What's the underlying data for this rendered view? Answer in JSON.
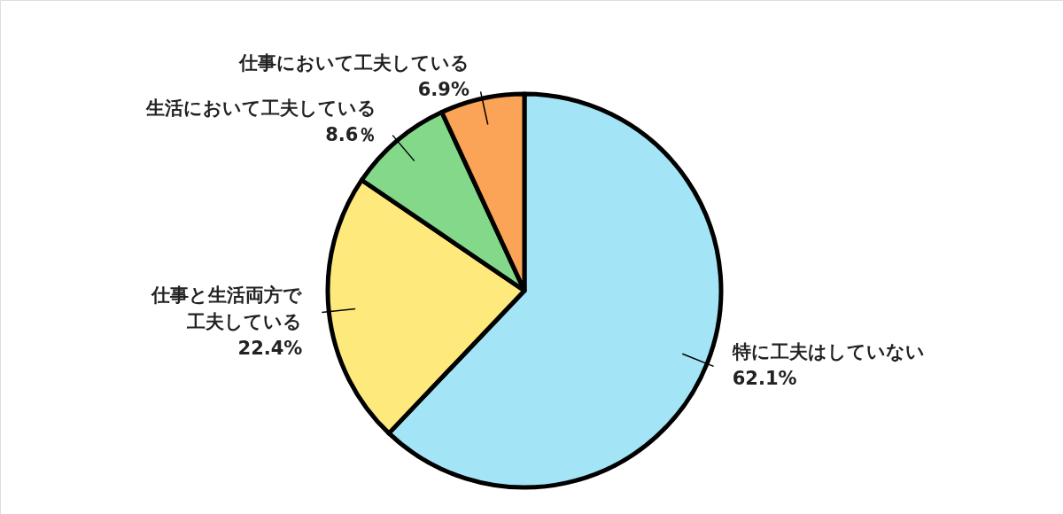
{
  "chart_data": {
    "type": "pie",
    "categories": [
      "特に工夫はしていない",
      "仕事と生活両方で工夫している",
      "生活において工夫している",
      "仕事において工夫している"
    ],
    "values": [
      62.1,
      22.4,
      8.6,
      6.9
    ],
    "value_labels": [
      "62.1%",
      "22.4%",
      "8.6％",
      "6.9%"
    ],
    "colors": [
      "#a3e5f6",
      "#fee97c",
      "#83d88a",
      "#fba356"
    ]
  }
}
